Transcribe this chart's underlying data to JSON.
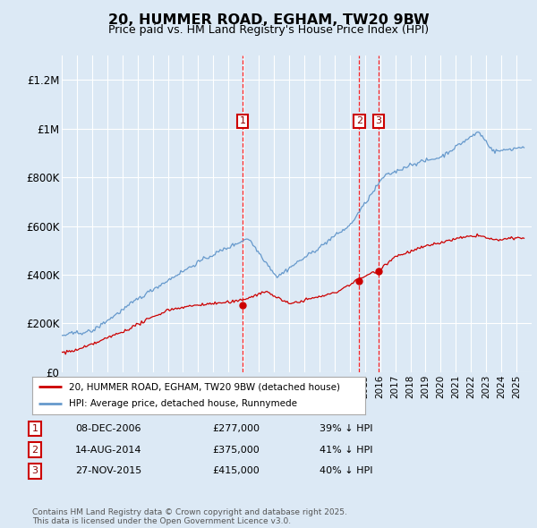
{
  "title": "20, HUMMER ROAD, EGHAM, TW20 9BW",
  "subtitle": "Price paid vs. HM Land Registry's House Price Index (HPI)",
  "background_color": "#dce9f5",
  "plot_bg_color": "#dce9f5",
  "ylim": [
    0,
    1300000
  ],
  "yticks": [
    0,
    200000,
    400000,
    600000,
    800000,
    1000000,
    1200000
  ],
  "ytick_labels": [
    "£0",
    "£200K",
    "£400K",
    "£600K",
    "£800K",
    "£1M",
    "£1.2M"
  ],
  "red_line_color": "#cc0000",
  "blue_line_color": "#6699cc",
  "sale_markers": [
    {
      "label": "1",
      "date_x": 2006.92,
      "price": 277000
    },
    {
      "label": "2",
      "date_x": 2014.62,
      "price": 375000
    },
    {
      "label": "3",
      "date_x": 2015.91,
      "price": 415000
    }
  ],
  "table_entries": [
    {
      "num": "1",
      "date": "08-DEC-2006",
      "price": "£277,000",
      "pct": "39% ↓ HPI"
    },
    {
      "num": "2",
      "date": "14-AUG-2014",
      "price": "£375,000",
      "pct": "41% ↓ HPI"
    },
    {
      "num": "3",
      "date": "27-NOV-2015",
      "price": "£415,000",
      "pct": "40% ↓ HPI"
    }
  ],
  "legend_entries": [
    {
      "label": "20, HUMMER ROAD, EGHAM, TW20 9BW (detached house)",
      "color": "#cc0000"
    },
    {
      "label": "HPI: Average price, detached house, Runnymede",
      "color": "#6699cc"
    }
  ],
  "footer": "Contains HM Land Registry data © Crown copyright and database right 2025.\nThis data is licensed under the Open Government Licence v3.0.",
  "xmin": 1995,
  "xmax": 2026
}
